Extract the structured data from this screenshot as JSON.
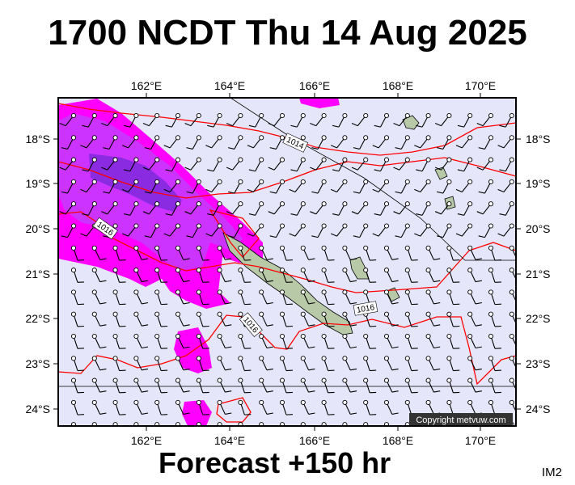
{
  "header": {
    "title": "1700 NCDT Thu 14 Aug 2025"
  },
  "footer": {
    "forecast": "Forecast +150 hr",
    "code": "IM2"
  },
  "map": {
    "copyright": "Copyright metvuw.com",
    "lon_ticks": [
      "162°E",
      "164°E",
      "166°E",
      "168°E",
      "170°E"
    ],
    "lat_ticks": [
      "18°S",
      "19°S",
      "20°S",
      "21°S",
      "22°S",
      "23°S",
      "24°S"
    ],
    "isobar_labels": [
      "1014",
      "1016",
      "1016",
      "1016"
    ],
    "colors": {
      "sea": "#e6e6fa",
      "isobar": "#ff0000",
      "rain_light": "#ff00ff",
      "rain_mid": "#cc33ff",
      "rain_heavy": "#8a2be2",
      "land": "#b8c9a8"
    }
  }
}
